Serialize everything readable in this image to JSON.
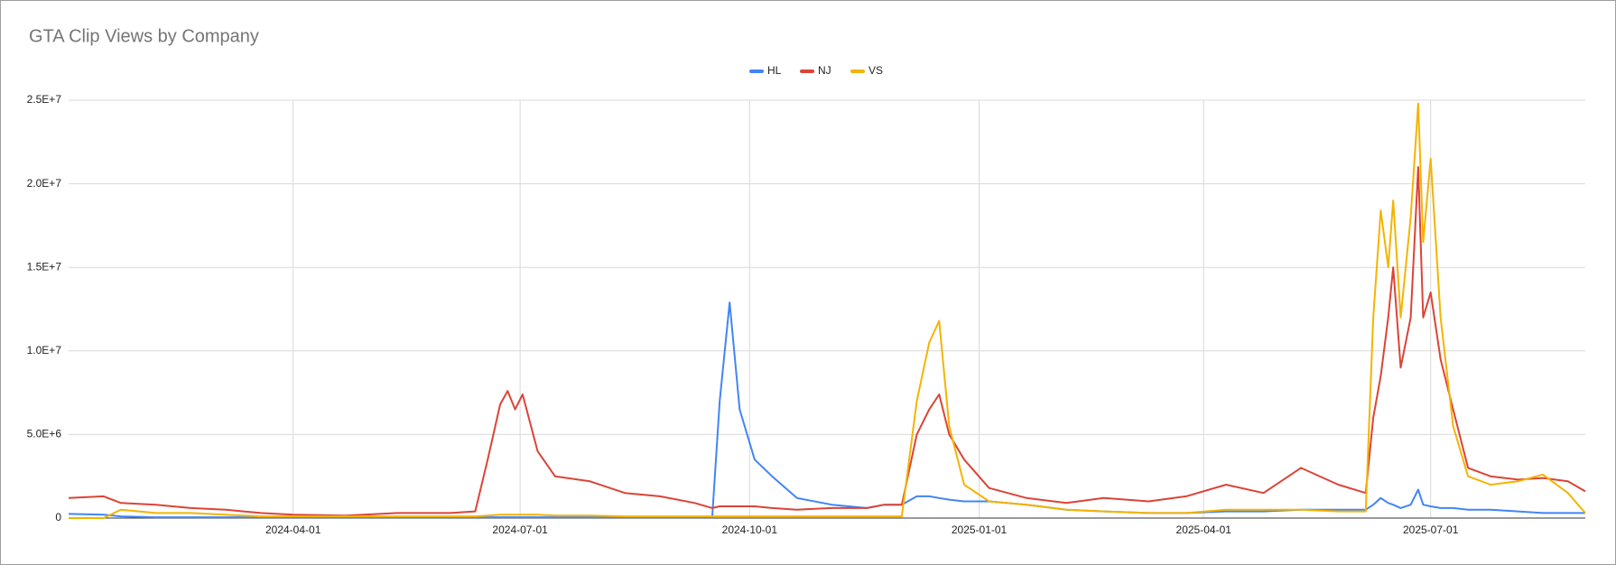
{
  "chart_data": {
    "type": "line",
    "title": "GTA Clip Views by Company",
    "x": [
      "2024-01-02",
      "2024-01-16",
      "2024-01-23",
      "2024-02-06",
      "2024-02-20",
      "2024-03-05",
      "2024-03-19",
      "2024-04-01",
      "2024-04-22",
      "2024-05-13",
      "2024-06-03",
      "2024-06-13",
      "2024-06-18",
      "2024-06-23",
      "2024-06-26",
      "2024-06-29",
      "2024-07-02",
      "2024-07-08",
      "2024-07-15",
      "2024-07-29",
      "2024-08-12",
      "2024-08-26",
      "2024-09-09",
      "2024-09-16",
      "2024-09-19",
      "2024-09-23",
      "2024-09-27",
      "2024-10-03",
      "2024-10-10",
      "2024-10-20",
      "2024-11-03",
      "2024-11-17",
      "2024-11-24",
      "2024-12-01",
      "2024-12-07",
      "2024-12-12",
      "2024-12-16",
      "2024-12-20",
      "2024-12-26",
      "2025-01-05",
      "2025-01-20",
      "2025-02-05",
      "2025-02-20",
      "2025-03-10",
      "2025-03-25",
      "2025-04-10",
      "2025-04-25",
      "2025-05-10",
      "2025-05-25",
      "2025-06-05",
      "2025-06-08",
      "2025-06-11",
      "2025-06-14",
      "2025-06-16",
      "2025-06-19",
      "2025-06-23",
      "2025-06-26",
      "2025-06-28",
      "2025-07-01",
      "2025-07-05",
      "2025-07-10",
      "2025-07-16",
      "2025-07-25",
      "2025-08-05",
      "2025-08-15",
      "2025-08-25",
      "2025-09-01"
    ],
    "series": [
      {
        "name": "HL",
        "color": "#4285f4",
        "values": [
          250000,
          200000,
          100000,
          50000,
          50000,
          50000,
          50000,
          50000,
          50000,
          50000,
          50000,
          50000,
          50000,
          50000,
          50000,
          50000,
          50000,
          50000,
          50000,
          50000,
          50000,
          50000,
          50000,
          50000,
          7000000,
          12900000,
          6500000,
          3500000,
          2500000,
          1200000,
          800000,
          600000,
          800000,
          800000,
          1300000,
          1300000,
          1200000,
          1100000,
          1000000,
          1000000,
          800000,
          500000,
          400000,
          300000,
          300000,
          400000,
          400000,
          500000,
          500000,
          500000,
          800000,
          1200000,
          900000,
          800000,
          600000,
          800000,
          1700000,
          800000,
          700000,
          600000,
          600000,
          500000,
          500000,
          400000,
          300000,
          300000,
          300000
        ]
      },
      {
        "name": "NJ",
        "color": "#db4437",
        "values": [
          1200000,
          1300000,
          900000,
          800000,
          600000,
          500000,
          300000,
          200000,
          150000,
          300000,
          300000,
          400000,
          3500000,
          6800000,
          7600000,
          6500000,
          7400000,
          4000000,
          2500000,
          2200000,
          1500000,
          1300000,
          900000,
          600000,
          700000,
          700000,
          700000,
          700000,
          600000,
          500000,
          600000,
          600000,
          800000,
          800000,
          5000000,
          6500000,
          7400000,
          5000000,
          3500000,
          1800000,
          1200000,
          900000,
          1200000,
          1000000,
          1300000,
          2000000,
          1500000,
          3000000,
          2000000,
          1500000,
          6000000,
          8500000,
          12000000,
          15000000,
          9000000,
          12000000,
          21000000,
          12000000,
          13500000,
          9500000,
          6500000,
          3000000,
          2500000,
          2300000,
          2400000,
          2200000,
          1600000
        ]
      },
      {
        "name": "VS",
        "color": "#f4b400",
        "values": [
          0,
          0,
          500000,
          300000,
          300000,
          200000,
          100000,
          100000,
          100000,
          100000,
          100000,
          100000,
          150000,
          200000,
          200000,
          200000,
          200000,
          200000,
          150000,
          150000,
          100000,
          100000,
          100000,
          100000,
          100000,
          100000,
          100000,
          100000,
          100000,
          100000,
          100000,
          100000,
          100000,
          100000,
          7000000,
          10500000,
          11800000,
          5500000,
          2000000,
          1000000,
          800000,
          500000,
          400000,
          300000,
          300000,
          500000,
          500000,
          500000,
          400000,
          400000,
          12000000,
          18400000,
          15000000,
          19000000,
          12000000,
          18000000,
          24800000,
          16500000,
          21500000,
          12000000,
          5500000,
          2500000,
          2000000,
          2200000,
          2600000,
          1500000,
          300000
        ]
      }
    ],
    "xlim": [
      "2024-01-02",
      "2025-09-01"
    ],
    "xticks": [
      "2024-04-01",
      "2024-07-01",
      "2024-10-01",
      "2025-01-01",
      "2025-04-01",
      "2025-07-01"
    ],
    "ylim": [
      0,
      25000000
    ],
    "yticks": [
      0,
      {
        "value": 5000000,
        "label": "5.0E+6"
      },
      {
        "value": 10000000,
        "label": "1.0E+7"
      },
      {
        "value": 15000000,
        "label": "1.5E+7"
      },
      {
        "value": 20000000,
        "label": "2.0E+7"
      },
      {
        "value": 25000000,
        "label": "2.5E+7"
      }
    ],
    "grid": true,
    "legend": "top"
  }
}
